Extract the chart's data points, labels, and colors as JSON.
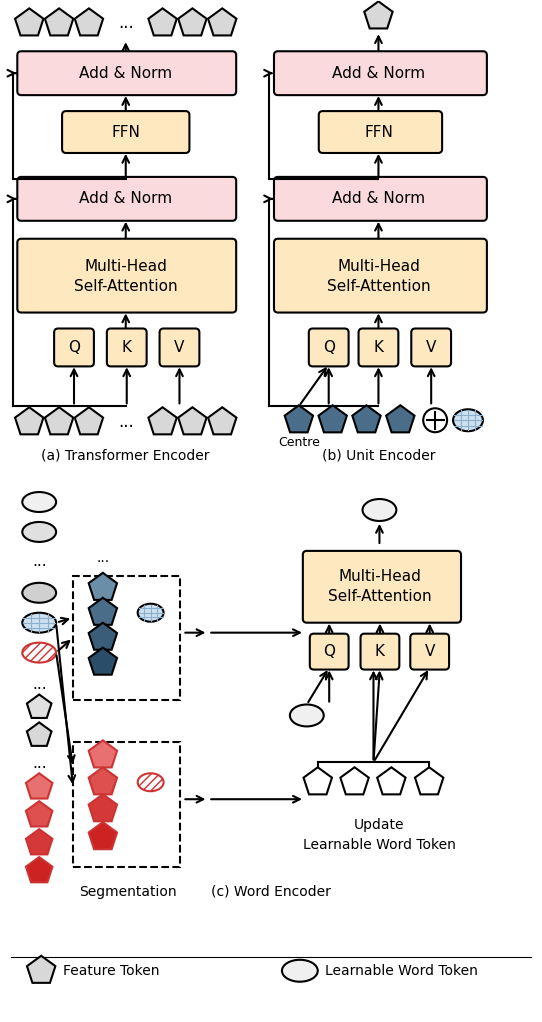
{
  "bg_color": "#ffffff",
  "pink_box_color": "#fadadd",
  "orange_box_color": "#fde8c0",
  "blue_pentagon": "#4a6e8a",
  "red_pentagon": "#d94040",
  "label_a": "(a) Transformer Encoder",
  "label_b": "(b) Unit Encoder",
  "label_c": "(c) Word Encoder",
  "legend_feature": "Feature Token",
  "legend_word": "Learnable Word Token"
}
